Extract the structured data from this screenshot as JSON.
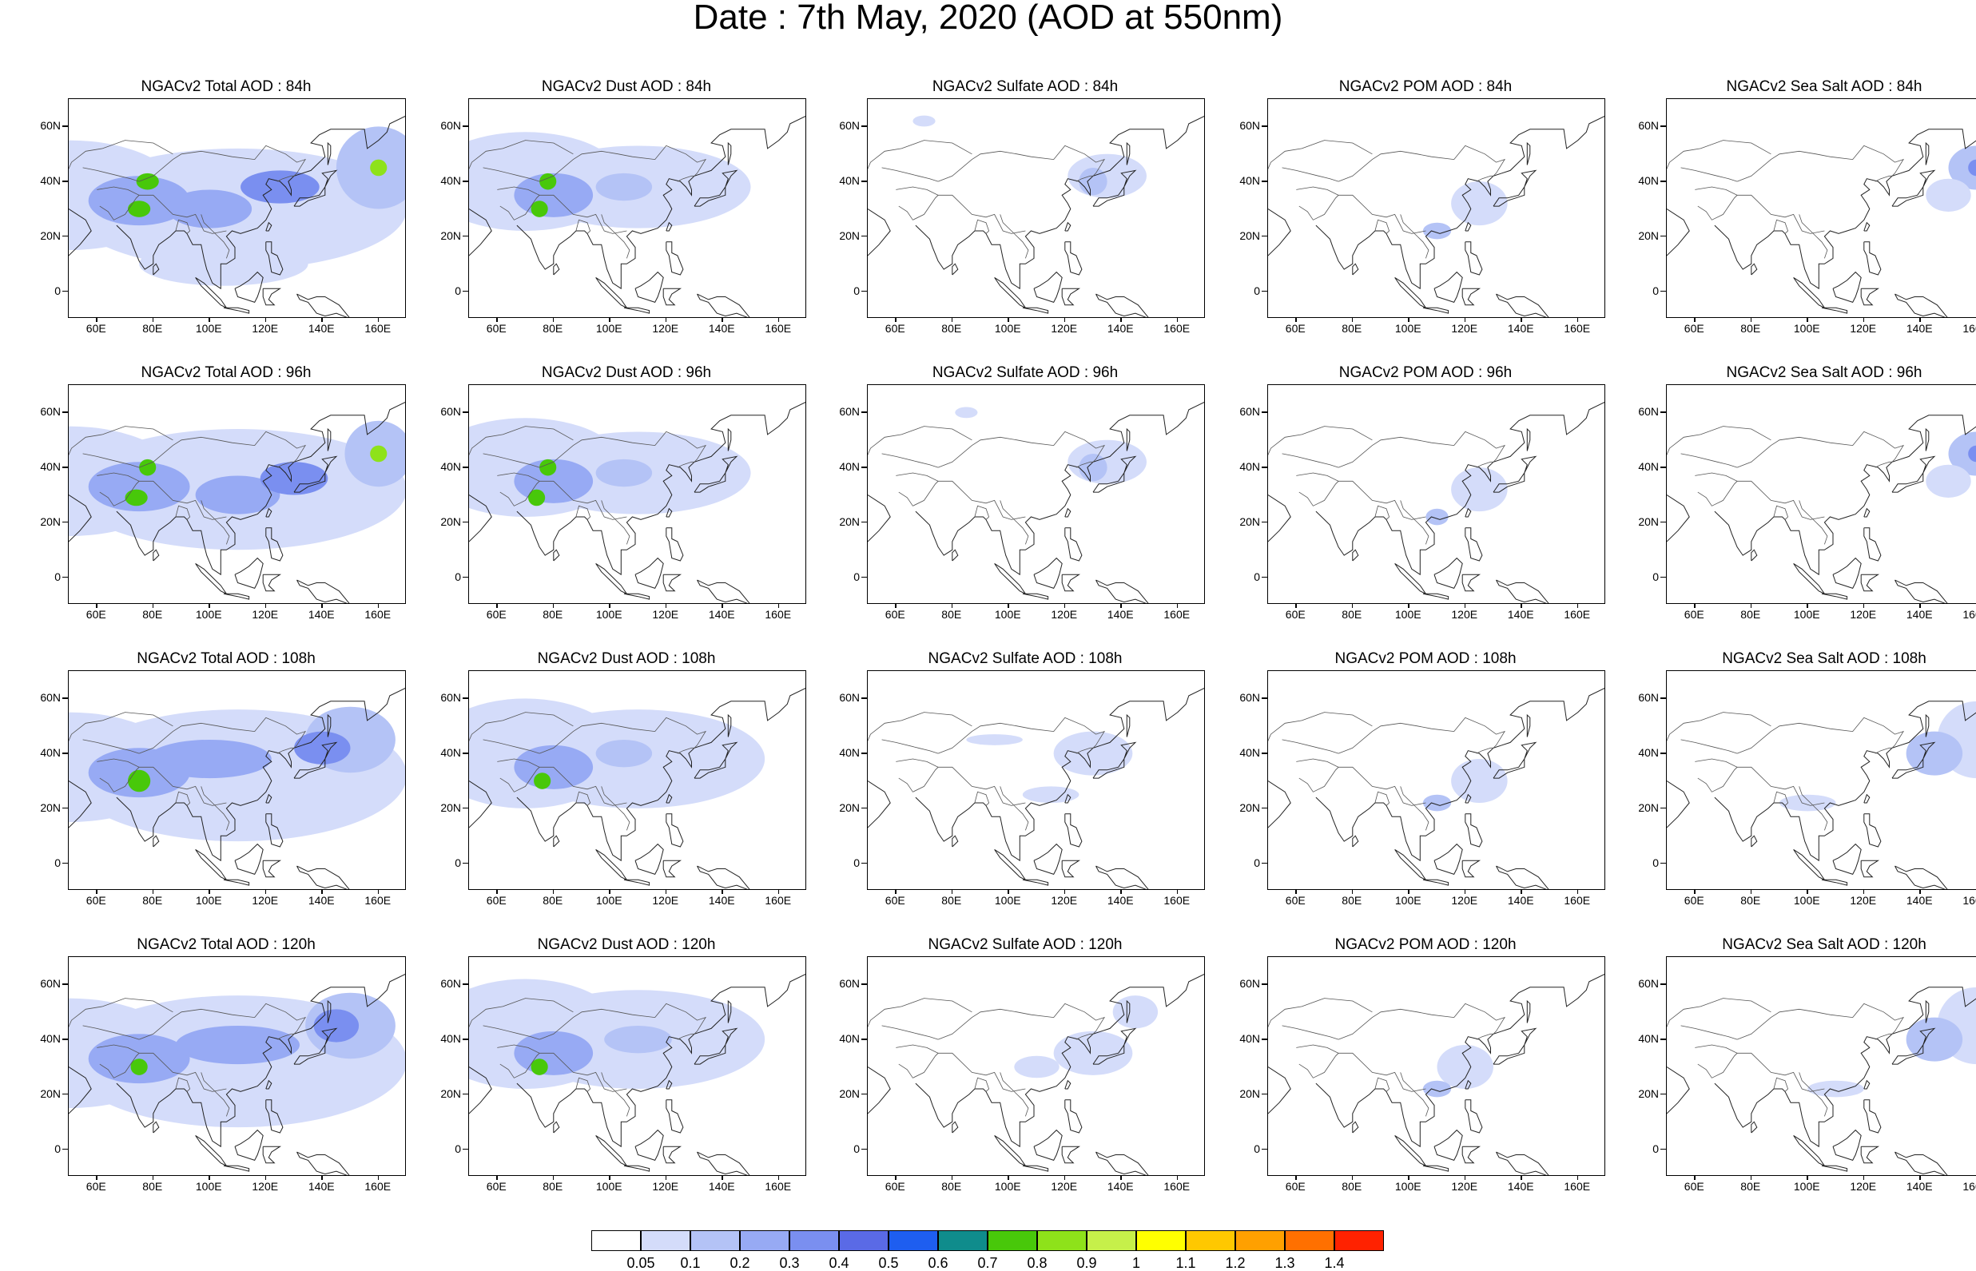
{
  "title": "Date : 7th May, 2020 (AOD at 550nm)",
  "map": {
    "projection": "cylindrical equidistant",
    "lon_range": [
      50,
      170
    ],
    "lat_range": [
      -10,
      70
    ],
    "lon_ticks": [
      "60E",
      "80E",
      "100E",
      "120E",
      "140E",
      "160E"
    ],
    "lat_ticks": [
      "60N",
      "40N",
      "20N",
      "0"
    ]
  },
  "colorbar": {
    "labels": [
      "0.05",
      "0.1",
      "0.2",
      "0.3",
      "0.4",
      "0.5",
      "0.6",
      "0.7",
      "0.8",
      "0.9",
      "1",
      "1.1",
      "1.2",
      "1.3",
      "1.4"
    ],
    "colors": [
      "#ffffff",
      "#d4dcfa",
      "#b4c3f6",
      "#97aaf4",
      "#7a8ff0",
      "#5a6ae6",
      "#1e5ef0",
      "#0f8c8c",
      "#48c80a",
      "#8ee21a",
      "#c6f04a",
      "#ffff00",
      "#ffc800",
      "#ffa000",
      "#ff7000",
      "#ff2200"
    ]
  },
  "panels": [
    {
      "title": "NGACv2 Total AOD : 84h"
    },
    {
      "title": "NGACv2 Dust AOD : 84h"
    },
    {
      "title": "NGACv2 Sulfate AOD : 84h"
    },
    {
      "title": "NGACv2 POM AOD : 84h"
    },
    {
      "title": "NGACv2 Sea Salt AOD : 84h"
    },
    {
      "title": "NGACv2 Total AOD : 96h"
    },
    {
      "title": "NGACv2 Dust AOD : 96h"
    },
    {
      "title": "NGACv2 Sulfate AOD : 96h"
    },
    {
      "title": "NGACv2 POM AOD : 96h"
    },
    {
      "title": "NGACv2 Sea Salt AOD : 96h"
    },
    {
      "title": "NGACv2 Total AOD : 108h"
    },
    {
      "title": "NGACv2 Dust AOD : 108h"
    },
    {
      "title": "NGACv2 Sulfate AOD : 108h"
    },
    {
      "title": "NGACv2 POM AOD : 108h"
    },
    {
      "title": "NGACv2 Sea Salt AOD : 108h"
    },
    {
      "title": "NGACv2 Total AOD : 120h"
    },
    {
      "title": "NGACv2 Dust AOD : 120h"
    },
    {
      "title": "NGACv2 Sulfate AOD : 120h"
    },
    {
      "title": "NGACv2 POM AOD : 120h"
    },
    {
      "title": "NGACv2 Sea Salt  AOD : 120h"
    }
  ]
}
